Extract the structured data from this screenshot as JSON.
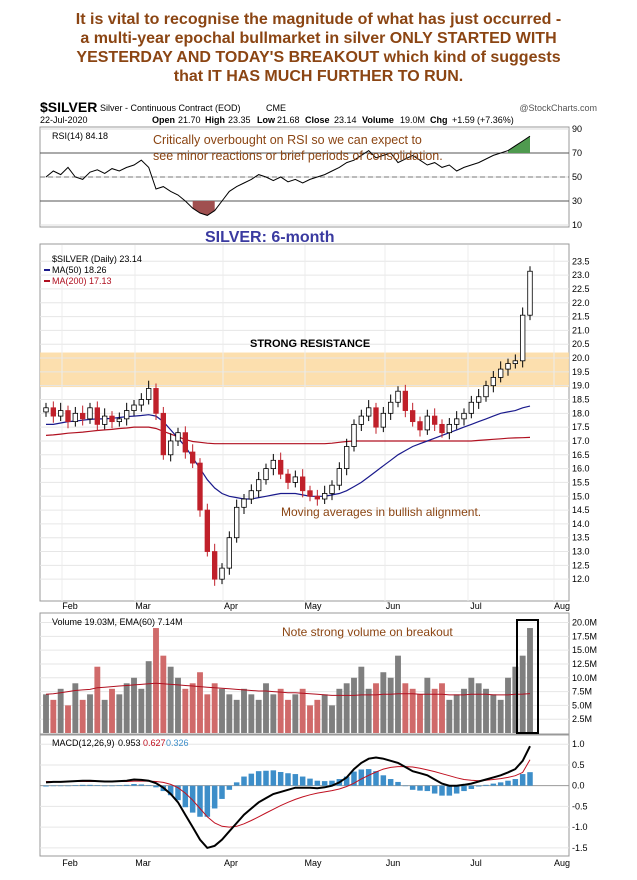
{
  "headline": {
    "lines": [
      "It is vital to recognise the magnitude of what has just occurred -",
      "a multi-year epochal bullmarket in silver ONLY STARTED WITH",
      "YESTERDAY AND TODAY'S BREAKOUT which kind of suggests",
      "that IT HAS MUCH FURTHER TO RUN."
    ],
    "color": "#8b4513"
  },
  "header": {
    "symbol": "$SILVER",
    "description": "Silver - Continuous Contract (EOD)",
    "exchange": "CME",
    "watermark": "@StockCharts.com",
    "date": "22-Jul-2020",
    "ohlc": {
      "open_label": "Open",
      "open": "21.70",
      "high_label": "High",
      "high": "23.35",
      "low_label": "Low",
      "low": "21.68",
      "close_label": "Close",
      "close": "23.14",
      "volume_label": "Volume",
      "volume": "19.0M",
      "chg_label": "Chg",
      "chg": "+1.59",
      "chg_pct": "(+7.36%)"
    }
  },
  "rsi": {
    "legend": "RSI(14) 84.18",
    "annotation": [
      "Critically overbought on RSI so we can expect to",
      "see minor reactions or brief periods of consolidation."
    ],
    "ticks": [
      "90",
      "70",
      "50",
      "30",
      "10"
    ],
    "ylim": [
      10,
      90
    ],
    "overbought": 70,
    "oversold": 30,
    "values": [
      50,
      55,
      52,
      58,
      50,
      48,
      54,
      56,
      53,
      57,
      55,
      58,
      60,
      64,
      58,
      40,
      42,
      38,
      35,
      30,
      24,
      20,
      18,
      22,
      30,
      38,
      42,
      45,
      48,
      52,
      50,
      47,
      50,
      46,
      48,
      45,
      48,
      50,
      52,
      55,
      58,
      62,
      64,
      68,
      72,
      66,
      68,
      70,
      62,
      65,
      68,
      64,
      60,
      62,
      58,
      60,
      55,
      58,
      60,
      62,
      65,
      68,
      70,
      72,
      76,
      80,
      84
    ],
    "colors": {
      "line": "#000000",
      "ob_fill": "#4f9a4f",
      "os_fill": "#a05050"
    }
  },
  "price": {
    "title": "SILVER: 6-month",
    "legend": {
      "symbol": "$SILVER (Daily) 23.14",
      "ma50": "MA(50) 18.26",
      "ma200": "MA(200) 17.13"
    },
    "resistance_label": "STRONG RESISTANCE",
    "resistance_range": [
      18.95,
      20.2
    ],
    "note": "Moving averages in bullish alignment.",
    "ticks": [
      "23.5",
      "23.0",
      "22.5",
      "22.0",
      "21.5",
      "21.0",
      "20.5",
      "20.0",
      "19.5",
      "19.0",
      "18.5",
      "18.0",
      "17.5",
      "17.0",
      "16.5",
      "16.0",
      "15.5",
      "15.0",
      "14.5",
      "14.0",
      "13.5",
      "13.0",
      "12.5",
      "12.0"
    ],
    "ylim": [
      11.5,
      23.8
    ],
    "colors": {
      "up": "#ffffff",
      "down": "#c0202a",
      "outline": "#000000",
      "ma50": "#1a1a8c",
      "ma200": "#b01020",
      "band": "#fbd9a0"
    },
    "closes": [
      18.2,
      17.9,
      18.1,
      17.7,
      18.0,
      17.8,
      18.2,
      17.6,
      17.9,
      17.7,
      17.8,
      18.1,
      18.3,
      18.5,
      18.9,
      18.0,
      16.5,
      17.0,
      17.3,
      16.6,
      16.2,
      14.5,
      13.0,
      12.0,
      12.4,
      13.5,
      14.6,
      14.9,
      15.2,
      15.6,
      16.0,
      16.3,
      15.8,
      15.5,
      15.7,
      15.2,
      15.0,
      14.9,
      15.1,
      15.4,
      16.0,
      16.8,
      17.6,
      17.9,
      18.2,
      17.5,
      18.0,
      18.4,
      18.8,
      18.1,
      17.7,
      17.4,
      17.9,
      17.6,
      17.3,
      17.6,
      17.8,
      18.0,
      18.4,
      18.6,
      19.0,
      19.3,
      19.6,
      19.8,
      19.9,
      21.55,
      23.14
    ],
    "ma50": [
      17.6,
      17.6,
      17.65,
      17.7,
      17.72,
      17.75,
      17.78,
      17.8,
      17.8,
      17.82,
      17.85,
      17.88,
      17.9,
      17.92,
      17.95,
      17.9,
      17.7,
      17.4,
      17.1,
      16.8,
      16.4,
      16.0,
      15.6,
      15.3,
      15.1,
      15.0,
      14.95,
      14.9,
      14.9,
      14.95,
      15.0,
      15.05,
      15.1,
      15.1,
      15.1,
      15.05,
      15.0,
      15.0,
      15.0,
      15.05,
      15.1,
      15.2,
      15.35,
      15.5,
      15.7,
      15.9,
      16.1,
      16.3,
      16.5,
      16.65,
      16.8,
      16.9,
      17.0,
      17.1,
      17.2,
      17.3,
      17.4,
      17.5,
      17.6,
      17.7,
      17.8,
      17.9,
      18.0,
      18.05,
      18.1,
      18.2,
      18.26
    ],
    "ma200": [
      17.2,
      17.22,
      17.25,
      17.28,
      17.3,
      17.32,
      17.35,
      17.38,
      17.4,
      17.42,
      17.45,
      17.47,
      17.5,
      17.5,
      17.5,
      17.45,
      17.35,
      17.25,
      17.15,
      17.05,
      16.98,
      16.95,
      16.92,
      16.9,
      16.9,
      16.9,
      16.9,
      16.9,
      16.9,
      16.9,
      16.9,
      16.9,
      16.9,
      16.9,
      16.9,
      16.9,
      16.9,
      16.9,
      16.9,
      16.92,
      16.95,
      16.98,
      17.0,
      17.0,
      17.0,
      17.0,
      17.0,
      17.0,
      17.0,
      17.0,
      17.0,
      17.0,
      17.0,
      17.0,
      17.0,
      17.0,
      17.0,
      17.0,
      17.0,
      17.02,
      17.04,
      17.06,
      17.08,
      17.1,
      17.11,
      17.12,
      17.13
    ]
  },
  "volume": {
    "legend": "Volume 19.03M, EMA(60) 7.14M",
    "note": "Note strong volume on breakout",
    "ticks": [
      "20.0M",
      "17.5M",
      "15.0M",
      "12.5M",
      "10.0M",
      "7.5M",
      "5.0M",
      "2.5M"
    ],
    "ylim": [
      0,
      21
    ],
    "values": [
      7,
      6,
      8,
      5,
      9,
      6,
      7,
      12,
      6,
      8,
      7,
      9,
      10,
      8,
      13,
      19,
      14,
      12,
      10,
      8,
      9,
      11,
      7,
      9,
      8,
      7,
      6,
      8,
      7,
      6,
      9,
      7,
      8,
      6,
      7,
      8,
      5,
      6,
      7,
      5,
      8,
      9,
      10,
      12,
      8,
      9,
      11,
      10,
      14,
      9,
      8,
      7,
      10,
      8,
      9,
      6,
      7,
      8,
      10,
      9,
      8,
      7,
      6,
      10,
      12,
      14,
      19
    ],
    "ema": [
      7,
      7.1,
      7.3,
      7.5,
      7.7,
      7.8,
      7.9,
      8.2,
      8.3,
      8.4,
      8.5,
      8.6,
      8.7,
      8.8,
      8.9,
      9.0,
      8.9,
      8.8,
      8.7,
      8.6,
      8.5,
      8.4,
      8.3,
      8.2,
      8.1,
      8.0,
      7.9,
      7.8,
      7.7,
      7.6,
      7.6,
      7.5,
      7.4,
      7.3,
      7.3,
      7.2,
      7.1,
      7.0,
      6.9,
      6.8,
      6.8,
      6.8,
      6.8,
      6.9,
      6.9,
      6.9,
      7.0,
      7.0,
      7.1,
      7.1,
      7.1,
      7.0,
      7.0,
      7.0,
      7.0,
      6.9,
      6.9,
      6.9,
      7.0,
      7.0,
      7.0,
      6.9,
      6.9,
      6.9,
      7.0,
      7.05,
      7.14
    ],
    "colors": {
      "up": "#7f7f7f",
      "down": "#d06a6a",
      "ema": "#b01020"
    }
  },
  "macd": {
    "legend_label": "MACD(12,26,9)",
    "legend_macd": "0.953",
    "legend_signal": "0.627",
    "legend_hist": "0.326",
    "ticks": [
      "1.0",
      "0.5",
      "0.0",
      "-0.5",
      "-1.0",
      "-1.5"
    ],
    "ylim": [
      -1.6,
      1.15
    ],
    "macd": [
      0.08,
      0.09,
      0.09,
      0.1,
      0.11,
      0.12,
      0.12,
      0.11,
      0.1,
      0.1,
      0.11,
      0.12,
      0.15,
      0.14,
      0.12,
      0.06,
      -0.05,
      -0.2,
      -0.4,
      -0.7,
      -1.0,
      -1.3,
      -1.5,
      -1.45,
      -1.3,
      -1.1,
      -0.9,
      -0.7,
      -0.55,
      -0.4,
      -0.3,
      -0.2,
      -0.15,
      -0.1,
      -0.05,
      -0.05,
      -0.05,
      -0.06,
      -0.04,
      0.0,
      0.08,
      0.2,
      0.4,
      0.55,
      0.65,
      0.68,
      0.65,
      0.6,
      0.55,
      0.45,
      0.35,
      0.3,
      0.25,
      0.15,
      0.05,
      0.0,
      0.0,
      0.02,
      0.05,
      0.1,
      0.15,
      0.2,
      0.25,
      0.32,
      0.4,
      0.6,
      0.953
    ],
    "signal": [
      0.1,
      0.1,
      0.1,
      0.1,
      0.1,
      0.1,
      0.1,
      0.1,
      0.1,
      0.1,
      0.1,
      0.1,
      0.11,
      0.11,
      0.11,
      0.1,
      0.08,
      0.03,
      -0.05,
      -0.18,
      -0.35,
      -0.55,
      -0.75,
      -0.9,
      -0.98,
      -1.0,
      -0.98,
      -0.92,
      -0.84,
      -0.75,
      -0.66,
      -0.57,
      -0.48,
      -0.4,
      -0.33,
      -0.27,
      -0.22,
      -0.18,
      -0.15,
      -0.12,
      -0.08,
      -0.02,
      0.06,
      0.16,
      0.25,
      0.33,
      0.4,
      0.44,
      0.46,
      0.46,
      0.45,
      0.42,
      0.38,
      0.34,
      0.29,
      0.24,
      0.19,
      0.15,
      0.13,
      0.12,
      0.13,
      0.15,
      0.17,
      0.2,
      0.24,
      0.32,
      0.627
    ],
    "colors": {
      "macd": "#000000",
      "signal": "#c01020",
      "hist": "#3d8ec9"
    }
  },
  "x_axis": {
    "months": [
      "Feb",
      "Mar",
      "Apr",
      "May",
      "Jun",
      "Jul",
      "Aug"
    ]
  }
}
